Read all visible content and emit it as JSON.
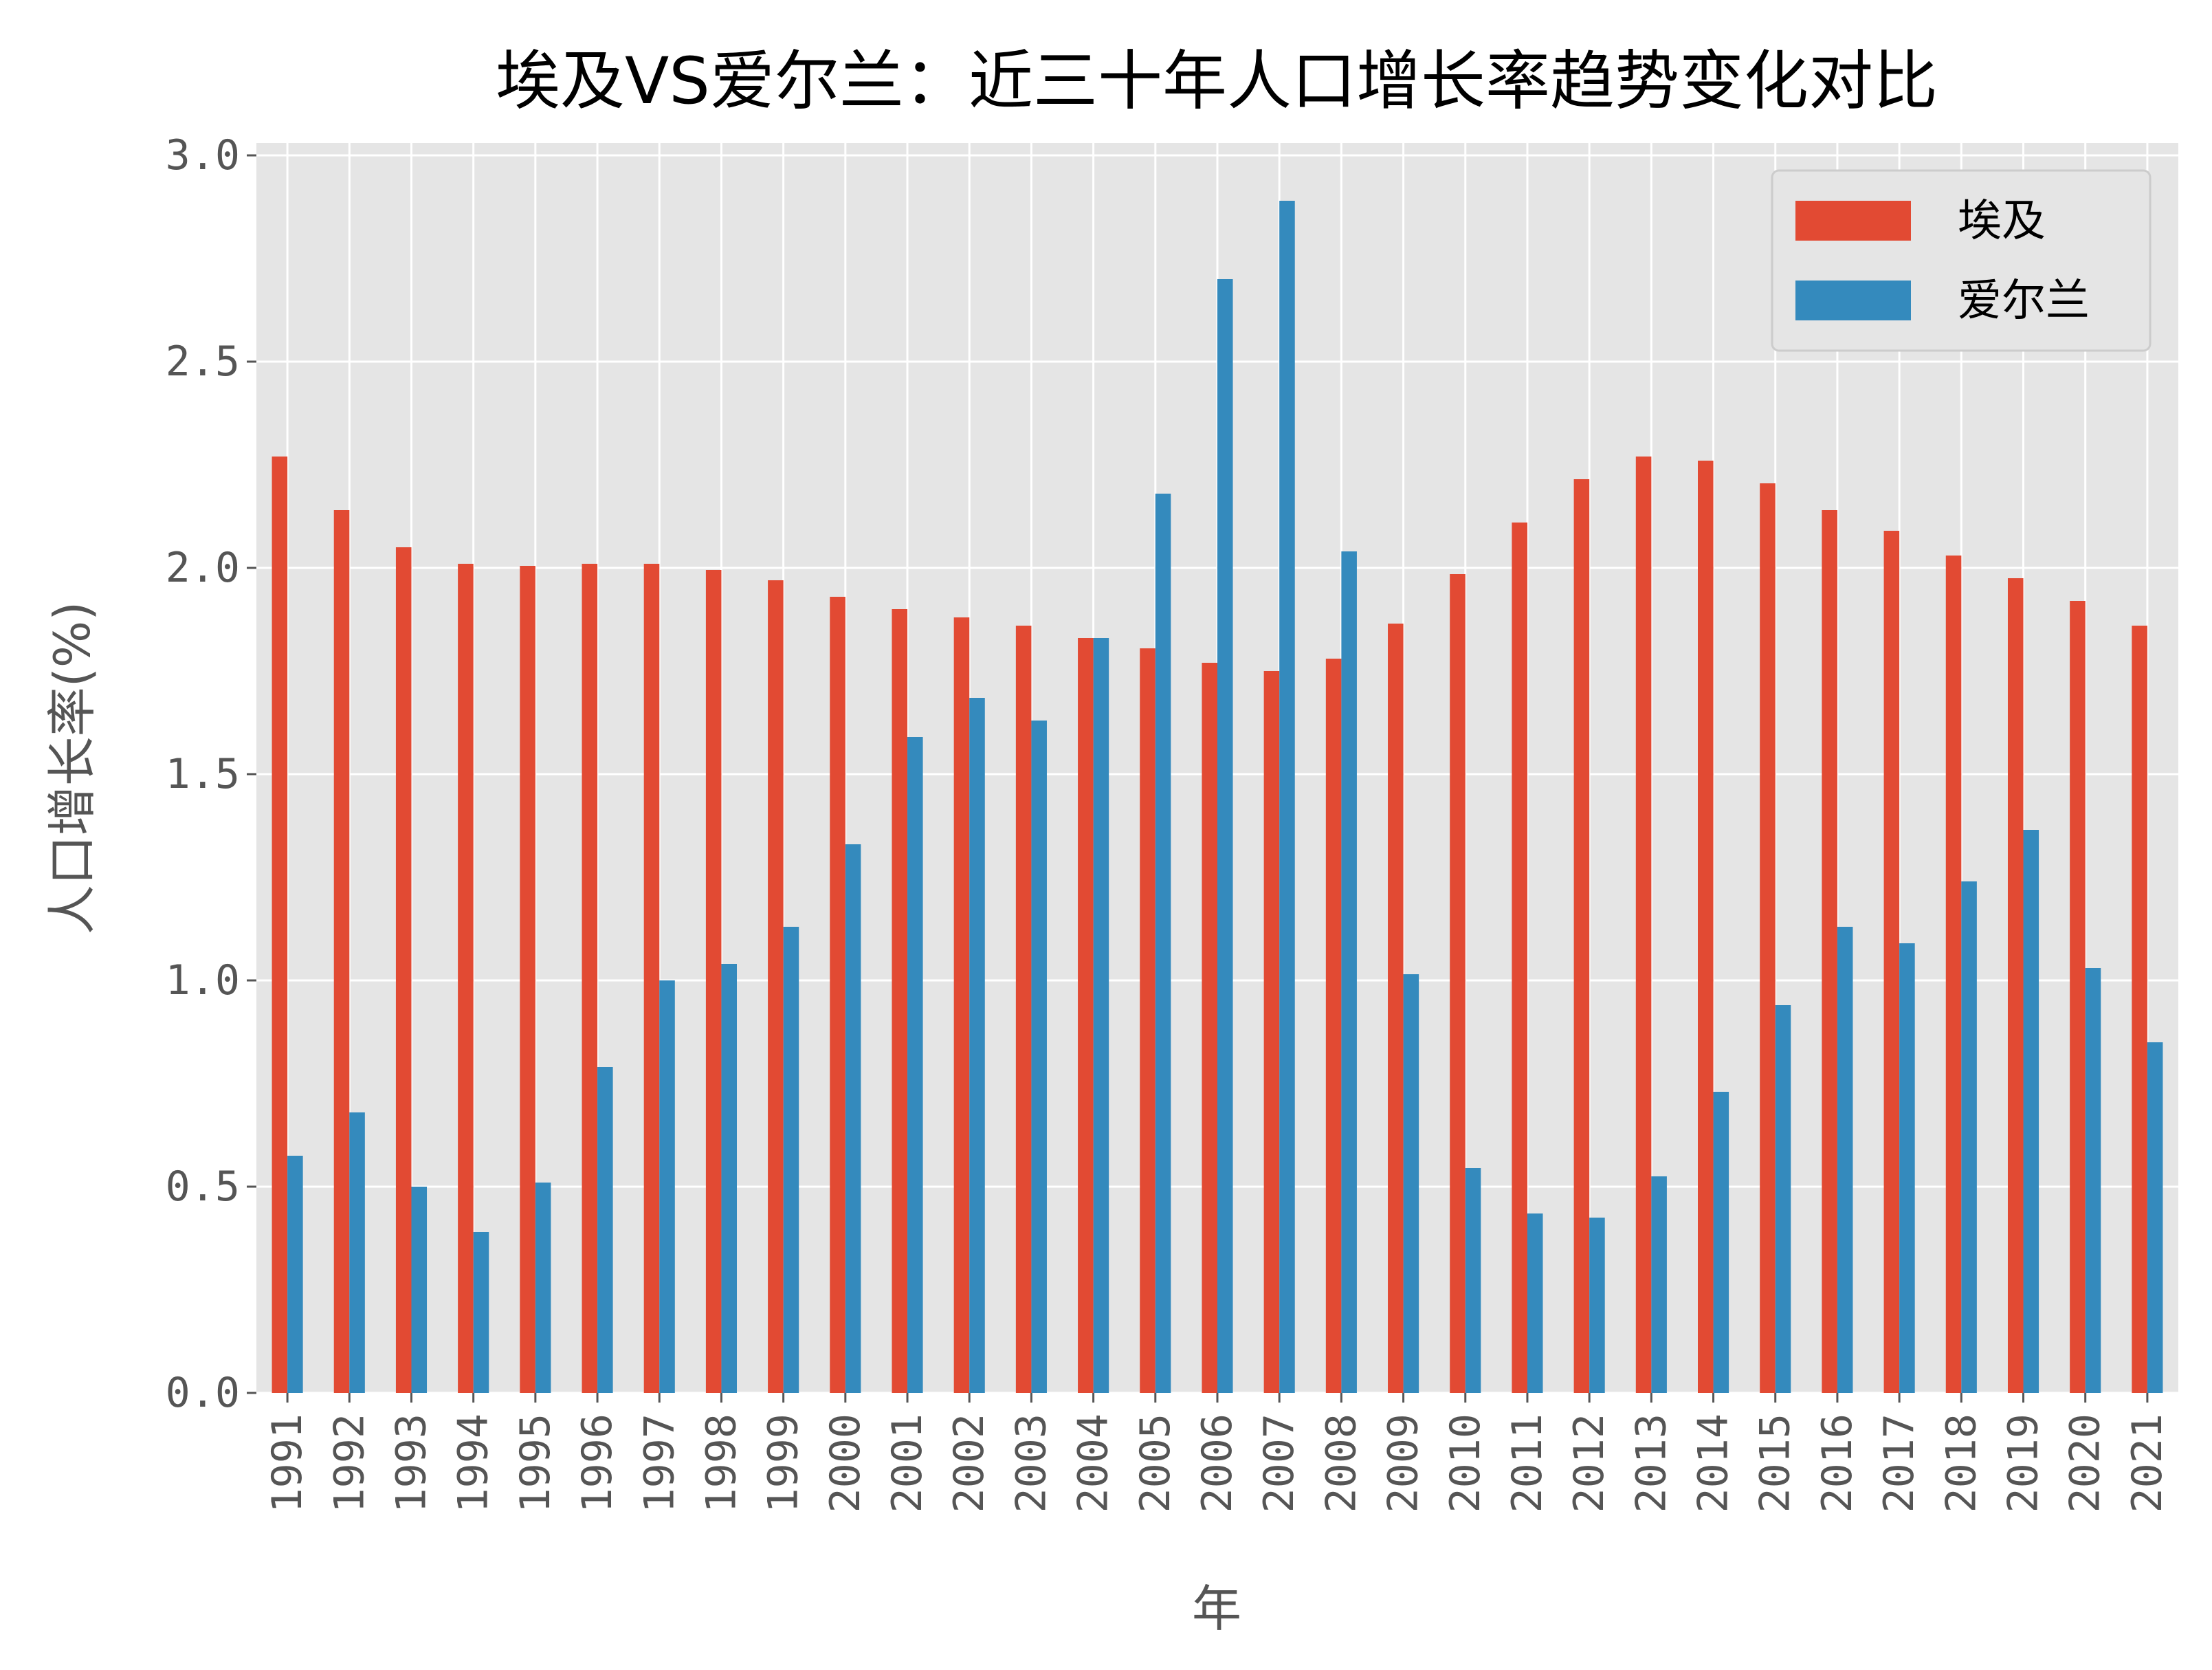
{
  "chart_data": {
    "type": "bar",
    "title": "埃及VS爱尔兰：近三十年人口增长率趋势变化对比",
    "xlabel": "年",
    "ylabel": "人口增长率(%)",
    "ylim": [
      0,
      3.03
    ],
    "yticks": [
      "0.0",
      "0.5",
      "1.0",
      "1.5",
      "2.0",
      "2.5",
      "3.0"
    ],
    "grid": true,
    "legend_position": "top-right",
    "categories": [
      "1991",
      "1992",
      "1993",
      "1994",
      "1995",
      "1996",
      "1997",
      "1998",
      "1999",
      "2000",
      "2001",
      "2002",
      "2003",
      "2004",
      "2005",
      "2006",
      "2007",
      "2008",
      "2009",
      "2010",
      "2011",
      "2012",
      "2013",
      "2014",
      "2015",
      "2016",
      "2017",
      "2018",
      "2019",
      "2020",
      "2021"
    ],
    "series": [
      {
        "name": "埃及",
        "color": "#E24A33",
        "values": [
          2.27,
          2.14,
          2.05,
          2.01,
          2.005,
          2.01,
          2.01,
          1.995,
          1.97,
          1.93,
          1.9,
          1.88,
          1.86,
          1.83,
          1.805,
          1.77,
          1.75,
          1.78,
          1.865,
          1.985,
          2.11,
          2.215,
          2.27,
          2.26,
          2.205,
          2.14,
          2.09,
          2.03,
          1.975,
          1.92,
          1.86
        ]
      },
      {
        "name": "爱尔兰",
        "color": "#348ABD",
        "values": [
          0.575,
          0.68,
          0.5,
          0.39,
          0.51,
          0.79,
          1.0,
          1.04,
          1.13,
          1.33,
          1.59,
          1.685,
          1.63,
          1.83,
          2.18,
          2.7,
          2.89,
          2.04,
          1.015,
          0.545,
          0.435,
          0.425,
          0.525,
          0.73,
          0.94,
          1.13,
          1.09,
          1.24,
          1.365,
          1.03,
          0.85
        ]
      }
    ],
    "background_color": "#E5E5E5"
  }
}
